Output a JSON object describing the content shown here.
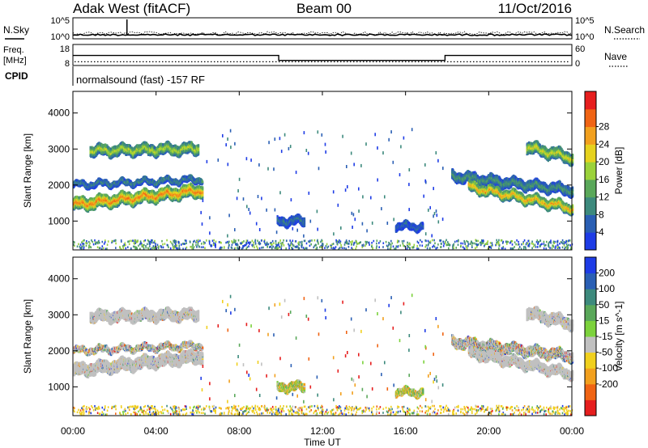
{
  "header": {
    "radar": "Adak West (fitACF)",
    "beam": "Beam 00",
    "date": "11/Oct/2016"
  },
  "noise_panel": {
    "left_label": "N.Sky",
    "right_label": "N.Search",
    "y_top": "10^5",
    "y_bottom": "10^0",
    "right_top": "10^5",
    "right_bottom": "10^0"
  },
  "freq_panel": {
    "left_label_1": "Freq.",
    "left_label_2": "[MHz]",
    "cpid_label": "CPID",
    "right_label": "Nave",
    "y_top": "18",
    "y_bottom": "8",
    "right_top": "60",
    "right_bottom": "0",
    "mode_text": "normalsound (fast) -157 RF"
  },
  "colors": {
    "power": [
      "#1e3ce6",
      "#2a5fb4",
      "#3d8a7d",
      "#5aa85a",
      "#9bd23a",
      "#e6d21e",
      "#f2a01e",
      "#f06414",
      "#e61e1e"
    ],
    "velocity": [
      "#1e3ce6",
      "#2a5fb4",
      "#3d8a7d",
      "#5aa85a",
      "#7cd23c",
      "#c0c0c0",
      "#f0d01e",
      "#f2a01e",
      "#f06414",
      "#e61e1e"
    ],
    "ground_scatter": "#c0c0c0"
  },
  "chart_data": {
    "type": "heatmap",
    "x_axis": {
      "label": "Time UT",
      "ticks": [
        "00:00",
        "04:00",
        "08:00",
        "12:00",
        "16:00",
        "20:00",
        "00:00"
      ],
      "range_hours": [
        0,
        24
      ]
    },
    "y_axis": {
      "label": "Slant Range [km]",
      "ticks": [
        1000,
        2000,
        3000,
        4000
      ],
      "range_km": [
        200,
        4600
      ]
    },
    "frequency_series": {
      "segments": [
        {
          "t0": 0.0,
          "t1": 9.9,
          "mhz": 13.2
        },
        {
          "t0": 9.9,
          "t1": 17.9,
          "mhz": 10.4
        },
        {
          "t0": 17.9,
          "t1": 24.0,
          "mhz": 13.2
        }
      ],
      "nave_level": 9
    },
    "power_panel": {
      "colorbar_label": "Power [dB]",
      "colorbar_ticks": [
        "4",
        "8",
        "12",
        "16",
        "20",
        "24",
        "28"
      ],
      "range_db": [
        0,
        32
      ]
    },
    "velocity_panel": {
      "colorbar_label": "Velocity [m s^-1]",
      "colorbar_ticks": [
        "200",
        "100",
        "50",
        "15",
        "-15",
        "-50",
        "-100",
        "-200"
      ]
    },
    "echo_regions": [
      {
        "name": "dusk-low-band",
        "t0": 0.0,
        "t1": 6.2,
        "r_center": 1500,
        "r_center_end": 1900,
        "thick": 320,
        "power_db": 22,
        "kind": "gs"
      },
      {
        "name": "dusk-mid-band",
        "t0": 0.0,
        "t1": 6.2,
        "r_center": 2050,
        "r_center_end": 2200,
        "thick": 150,
        "power_db": 8,
        "kind": "mix"
      },
      {
        "name": "dusk-high-band",
        "t0": 0.8,
        "t1": 6.0,
        "r_center": 3000,
        "r_center_end": 3050,
        "thick": 280,
        "power_db": 15,
        "kind": "gs"
      },
      {
        "name": "midday-patch",
        "t0": 9.8,
        "t1": 11.1,
        "r_center": 1050,
        "r_center_end": 1050,
        "thick": 220,
        "power_db": 6,
        "kind": "iono"
      },
      {
        "name": "afternoon-patch",
        "t0": 15.5,
        "t1": 16.8,
        "r_center": 900,
        "r_center_end": 900,
        "thick": 180,
        "power_db": 5,
        "kind": "iono"
      },
      {
        "name": "dawn-upper-band",
        "t0": 18.2,
        "t1": 24.0,
        "r_center": 2300,
        "r_center_end": 1900,
        "thick": 260,
        "power_db": 9,
        "kind": "mix"
      },
      {
        "name": "dawn-low-band",
        "t0": 19.0,
        "t1": 24.0,
        "r_center": 2000,
        "r_center_end": 1400,
        "thick": 260,
        "power_db": 20,
        "kind": "gs"
      },
      {
        "name": "dawn-high-band",
        "t0": 21.8,
        "t1": 24.0,
        "r_center": 3100,
        "r_center_end": 2800,
        "thick": 300,
        "power_db": 16,
        "kind": "gs"
      }
    ]
  }
}
